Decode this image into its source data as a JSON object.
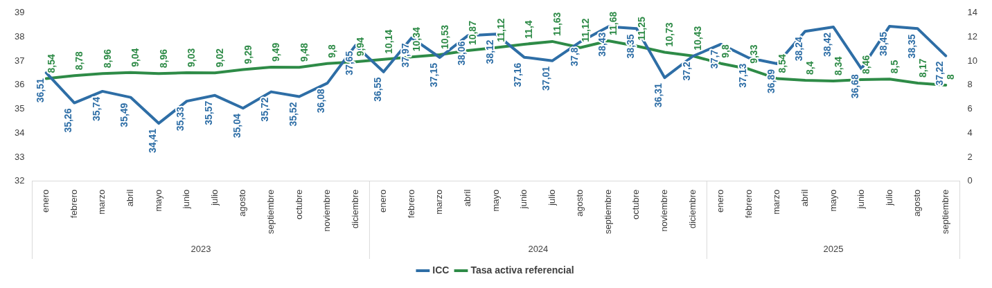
{
  "chart_data": {
    "type": "line",
    "categories": [
      "enero",
      "febrero",
      "marzo",
      "abril",
      "mayo",
      "junio",
      "julio",
      "agosto",
      "septiembre",
      "octubre",
      "noviembre",
      "diciembre",
      "enero",
      "febrero",
      "marzo",
      "abril",
      "mayo",
      "junio",
      "julio",
      "agosto",
      "septiembre",
      "octubre",
      "noviembre",
      "diciembre",
      "enero",
      "febrero",
      "marzo",
      "abril",
      "mayo",
      "junio",
      "julio",
      "agosto",
      "septiembre"
    ],
    "series": [
      {
        "name": "ICC",
        "color": "#2e6ea6",
        "values": [
          36.51,
          35.26,
          35.74,
          35.49,
          34.41,
          35.33,
          35.57,
          35.04,
          35.72,
          35.52,
          36.08,
          37.65,
          36.55,
          37.97,
          37.15,
          38.06,
          38.12,
          37.16,
          37.01,
          37.8,
          38.43,
          38.35,
          36.31,
          37.2,
          37.7,
          37.13,
          36.89,
          38.24,
          38.42,
          36.68,
          38.45,
          38.35,
          37.22
        ],
        "value_labels": [
          "36,51",
          "35,26",
          "35,74",
          "35,49",
          "34,41",
          "35,33",
          "35,57",
          "35,04",
          "35,72",
          "35,52",
          "36,08",
          "37,65",
          "36,55",
          "37,97",
          "37,15",
          "38,06",
          "38,12",
          "37,16",
          "37,01",
          "37,8",
          "38,43",
          "38,35",
          "36,31",
          "37,2",
          "37,7",
          "37,13",
          "36,89",
          "38,24",
          "38,42",
          "36,68",
          "38,45",
          "38,35",
          "37,22"
        ]
      },
      {
        "name": "Tasa activa referencial",
        "color": "#2e8b47",
        "axis": "y2",
        "values": [
          8.54,
          8.78,
          8.96,
          9.04,
          8.96,
          9.03,
          9.02,
          9.29,
          9.49,
          9.48,
          9.8,
          9.94,
          10.14,
          10.34,
          10.53,
          10.87,
          11.12,
          11.4,
          11.63,
          11.12,
          11.68,
          11.25,
          10.73,
          10.43,
          9.8,
          9.33,
          8.54,
          8.4,
          8.34,
          8.46,
          8.5,
          8.17,
          8
        ],
        "value_labels": [
          "8,54",
          "8,78",
          "8,96",
          "9,04",
          "8,96",
          "9,03",
          "9,02",
          "9,29",
          "9,49",
          "9,48",
          "9,8",
          "9,94",
          "10,14",
          "10,34",
          "10,53",
          "10,87",
          "11,12",
          "11,4",
          "11,63",
          "11,12",
          "11,68",
          "11,25",
          "10,73",
          "10,43",
          "9,8",
          "9,33",
          "8,54",
          "8,4",
          "8,34",
          "8,46",
          "8,5",
          "8,17",
          "8"
        ]
      }
    ],
    "ylim": [
      32,
      39
    ],
    "yticks": [
      32,
      33,
      34,
      35,
      36,
      37,
      38,
      39
    ],
    "y2lim": [
      0,
      14
    ],
    "y2ticks": [
      0,
      2,
      4,
      6,
      8,
      10,
      12,
      14
    ],
    "annotations": [
      "2023",
      "2024",
      "2025"
    ],
    "grid": false,
    "legend": "bottom",
    "marker": "none",
    "line_style": "solid"
  }
}
